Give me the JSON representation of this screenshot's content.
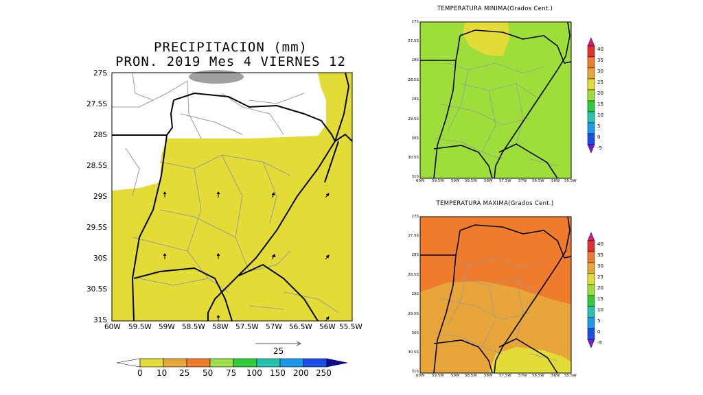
{
  "precip_map": {
    "title_line1": "PRECIPITACION (mm)",
    "title_line2": "PRON. 2019 Mes 4 VIERNES 12",
    "lat_labels": [
      "27S",
      "27.5S",
      "28S",
      "28.5S",
      "29S",
      "29.5S",
      "30S",
      "30.5S",
      "31S"
    ],
    "lon_labels": [
      "60W",
      "59.5W",
      "59W",
      "58.5W",
      "58W",
      "57.5W",
      "57W",
      "56.5W",
      "56W",
      "55.5W"
    ],
    "vector_reference": "25",
    "legend_labels": [
      "0",
      "10",
      "25",
      "50",
      "75",
      "100",
      "150",
      "200",
      "250"
    ],
    "legend_colors": [
      "#ffffff",
      "#e4dc36",
      "#e8a63a",
      "#ef7c2c",
      "#9ede4a",
      "#2ecb3a",
      "#26c2b0",
      "#1a9ae8",
      "#1a4ee8",
      "#0a0a9a"
    ],
    "colors": {
      "yellow": "#e4dc36",
      "white": "#ffffff",
      "grey": "#a0a0a0"
    }
  },
  "tmin_map": {
    "title": "TEMPERATURA MINIMA(Grados Cent.)",
    "lat_labels": [
      "27S",
      "27.5S",
      "28S",
      "28.5S",
      "29S",
      "29.5S",
      "30S",
      "30.5S",
      "31S"
    ],
    "lon_labels": [
      "60W",
      "59.5W",
      "59W",
      "58.5W",
      "58W",
      "57.5W",
      "57W",
      "56.5W",
      "56W",
      "55.5W"
    ],
    "colors": {
      "green": "#9ede3a",
      "yellow": "#e4dc36"
    }
  },
  "tmax_map": {
    "title": "TEMPERATURA MAXIMA(Grados Cent.)",
    "lat_labels": [
      "27S",
      "27.5S",
      "28S",
      "28.5S",
      "29S",
      "29.5S",
      "30S",
      "30.5S",
      "31S"
    ],
    "lon_labels": [
      "60W",
      "59.5W",
      "59W",
      "58.5W",
      "58W",
      "57.5W",
      "57W",
      "56.5W",
      "56W",
      "55.5W"
    ],
    "colors": {
      "orange": "#ef7c2c",
      "light_orange": "#e8a63a",
      "yellow": "#e4dc36"
    }
  },
  "temp_legend": {
    "labels": [
      "40",
      "35",
      "30",
      "25",
      "20",
      "15",
      "10",
      "5",
      "0",
      "-5"
    ],
    "colors": [
      "#d81a8a",
      "#e23030",
      "#ef7c2c",
      "#e8a63a",
      "#e4dc36",
      "#9ede3a",
      "#2ecb3a",
      "#26c2b0",
      "#1a9ae8",
      "#1a4ee8",
      "#7a1ae0"
    ]
  }
}
